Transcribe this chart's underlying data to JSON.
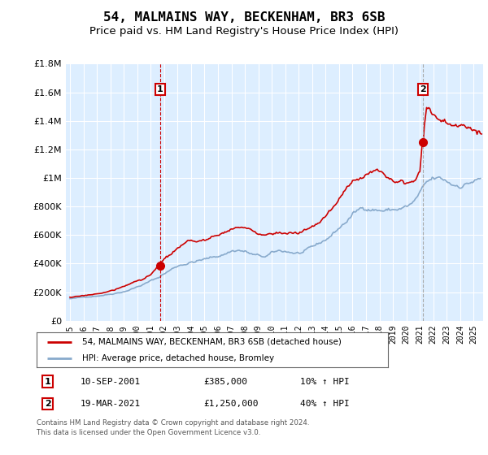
{
  "title": "54, MALMAINS WAY, BECKENHAM, BR3 6SB",
  "subtitle": "Price paid vs. HM Land Registry's House Price Index (HPI)",
  "title_fontsize": 11.5,
  "subtitle_fontsize": 9.5,
  "legend_line1": "54, MALMAINS WAY, BECKENHAM, BR3 6SB (detached house)",
  "legend_line2": "HPI: Average price, detached house, Bromley",
  "sale1_date": 2001.71,
  "sale1_price": 385000,
  "sale1_label": "1",
  "sale1_text": "10-SEP-2001",
  "sale1_amount": "£385,000",
  "sale1_hpi": "10% ↑ HPI",
  "sale2_date": 2021.21,
  "sale2_price": 1250000,
  "sale2_label": "2",
  "sale2_text": "19-MAR-2021",
  "sale2_amount": "£1,250,000",
  "sale2_hpi": "40% ↑ HPI",
  "footnote1": "Contains HM Land Registry data © Crown copyright and database right 2024.",
  "footnote2": "This data is licensed under the Open Government Licence v3.0.",
  "red_color": "#cc0000",
  "blue_color": "#88aacc",
  "sale2_vline_color": "#aaaaaa",
  "bg_color": "#ddeeff",
  "grid_color": "#ffffff",
  "ylim": [
    0,
    1800000
  ],
  "yticks": [
    0,
    200000,
    400000,
    600000,
    800000,
    1000000,
    1200000,
    1400000,
    1600000,
    1800000
  ],
  "ytick_labels": [
    "£0",
    "£200K",
    "£400K",
    "£600K",
    "£800K",
    "£1M",
    "£1.2M",
    "£1.4M",
    "£1.6M",
    "£1.8M"
  ],
  "xmin": 1994.7,
  "xmax": 2025.7,
  "xticks": [
    1995,
    1996,
    1997,
    1998,
    1999,
    2000,
    2001,
    2002,
    2003,
    2004,
    2005,
    2006,
    2007,
    2008,
    2009,
    2010,
    2011,
    2012,
    2013,
    2014,
    2015,
    2016,
    2017,
    2018,
    2019,
    2020,
    2021,
    2022,
    2023,
    2024,
    2025
  ]
}
